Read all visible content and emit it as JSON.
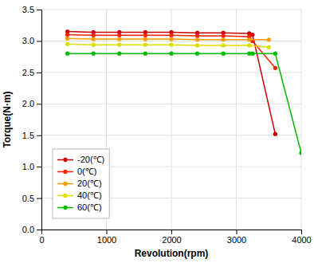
{
  "chart_data": {
    "type": "line",
    "xlabel": "Revolution(rpm)",
    "ylabel": "Torque(N·m)",
    "series": [
      {
        "name": "-20(℃)",
        "color": "#cc0000",
        "marker": "circle",
        "x": [
          400,
          800,
          1200,
          1600,
          2000,
          2400,
          2800,
          3200,
          3250,
          3600
        ],
        "values": [
          3.15,
          3.14,
          3.14,
          3.14,
          3.14,
          3.13,
          3.13,
          3.12,
          3.1,
          1.52
        ]
      },
      {
        "name": "0(℃)",
        "color": "#ff2200",
        "marker": "circle",
        "x": [
          400,
          800,
          1200,
          1600,
          2000,
          2400,
          2800,
          3200,
          3250,
          3600
        ],
        "values": [
          3.1,
          3.09,
          3.09,
          3.09,
          3.09,
          3.08,
          3.08,
          3.07,
          3.0,
          2.57
        ]
      },
      {
        "name": "20(℃)",
        "color": "#ff9900",
        "marker": "circle",
        "x": [
          400,
          800,
          1200,
          1600,
          2000,
          2400,
          2800,
          3200,
          3500
        ],
        "values": [
          3.04,
          3.03,
          3.03,
          3.03,
          3.03,
          3.02,
          3.02,
          3.02,
          3.02
        ]
      },
      {
        "name": "40(℃)",
        "color": "#dddd00",
        "marker": "circle",
        "x": [
          400,
          800,
          1200,
          1600,
          2000,
          2400,
          2800,
          3200,
          3500
        ],
        "values": [
          2.95,
          2.94,
          2.94,
          2.94,
          2.94,
          2.93,
          2.93,
          2.93,
          2.9
        ]
      },
      {
        "name": "60(℃)",
        "color": "#00bb00",
        "marker": "circle",
        "x": [
          400,
          800,
          1200,
          1600,
          2000,
          2400,
          2800,
          3200,
          3250,
          3600,
          4000
        ],
        "values": [
          2.8,
          2.8,
          2.8,
          2.8,
          2.8,
          2.8,
          2.8,
          2.8,
          2.8,
          2.8,
          1.22
        ]
      }
    ],
    "xlim": [
      0,
      4000
    ],
    "ylim": [
      0.0,
      3.5
    ],
    "xticks": [
      0,
      1000,
      2000,
      3000,
      4000
    ],
    "yticks": [
      {
        "value": 0.0,
        "label": "0.0"
      },
      0.5,
      {
        "value": 1.0,
        "label": "1.0"
      },
      1.5,
      {
        "value": 2.0,
        "label": "2.0"
      },
      2.5,
      {
        "value": 3.0,
        "label": "3.0"
      },
      3.5
    ],
    "grid": true,
    "legend": "lower left"
  }
}
